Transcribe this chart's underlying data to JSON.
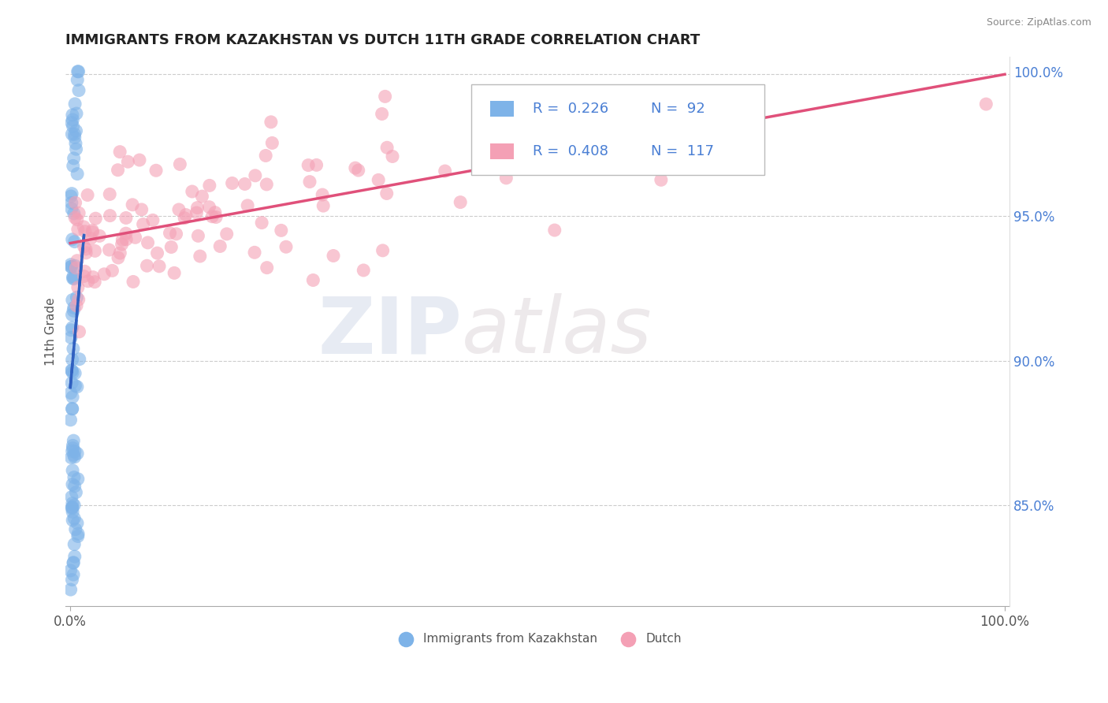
{
  "title": "IMMIGRANTS FROM KAZAKHSTAN VS DUTCH 11TH GRADE CORRELATION CHART",
  "source": "Source: ZipAtlas.com",
  "ylabel": "11th Grade",
  "blue_color": "#7eb3e8",
  "pink_color": "#f4a0b5",
  "trend_blue_color": "#3060c0",
  "trend_pink_color": "#e0507a",
  "watermark_zip": "ZIP",
  "watermark_atlas": "atlas",
  "legend_items": [
    {
      "label": "R = 0.226   N = 92",
      "color": "#7eb3e8"
    },
    {
      "label": "R = 0.408   N = 117",
      "color": "#f4a0b5"
    }
  ],
  "bottom_legend": [
    {
      "label": "Immigrants from Kazakhstan",
      "color": "#7eb3e8"
    },
    {
      "label": "Dutch",
      "color": "#f4a0b5"
    }
  ],
  "right_yticks": [
    0.85,
    0.9,
    0.95,
    1.0
  ],
  "right_yticklabels": [
    "85.0%",
    "90.0%",
    "95.0%",
    "100.0%"
  ],
  "ylim_low": 0.815,
  "ylim_high": 1.005,
  "xlim_low": -0.005,
  "xlim_high": 1.005,
  "hlines": [
    0.999,
    0.95,
    0.9,
    0.85
  ],
  "xtick_labels": [
    "0.0%",
    "100.0%"
  ],
  "xtick_vals": [
    0.0,
    1.0
  ]
}
